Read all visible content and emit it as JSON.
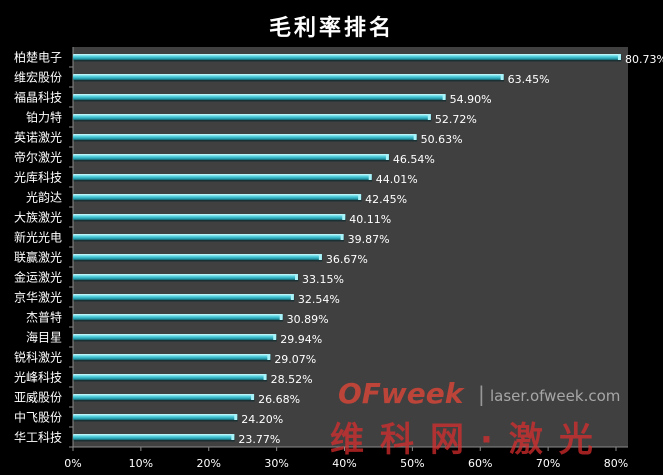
{
  "chart_data": {
    "type": "bar",
    "orientation": "horizontal",
    "title": "毛利率排名",
    "xlabel": "",
    "ylabel": "",
    "xlim": [
      0,
      80
    ],
    "x_ticks": [
      "0%",
      "10%",
      "20%",
      "30%",
      "40%",
      "50%",
      "60%",
      "70%",
      "80%"
    ],
    "grid": false,
    "bar_color": "#3fc3cf",
    "plot_background": "#404040",
    "categories": [
      "柏楚电子",
      "维宏股份",
      "福晶科技",
      "铂力特",
      "英诺激光",
      "帝尔激光",
      "光库科技",
      "光韵达",
      "大族激光",
      "新光光电",
      "联赢激光",
      "金运激光",
      "京华激光",
      "杰普特",
      "海目星",
      "锐科激光",
      "光峰科技",
      "亚威股份",
      "中飞股份",
      "华工科技"
    ],
    "values": [
      80.73,
      63.45,
      54.9,
      52.72,
      50.63,
      46.54,
      44.01,
      42.45,
      40.11,
      39.87,
      36.67,
      33.15,
      32.54,
      30.89,
      29.94,
      29.07,
      28.52,
      26.68,
      24.2,
      23.77
    ],
    "value_labels": [
      "80.73%",
      "63.45%",
      "54.90%",
      "52.72%",
      "50.63%",
      "46.54%",
      "44.01%",
      "42.45%",
      "40.11%",
      "39.87%",
      "36.67%",
      "33.15%",
      "32.54%",
      "30.89%",
      "29.94%",
      "29.07%",
      "28.52%",
      "26.68%",
      "24.20%",
      "23.77%"
    ]
  },
  "watermark": {
    "brand": "OFweek",
    "separator": "|",
    "url": "laser.ofweek.com",
    "chinese": "维科网·激光"
  }
}
